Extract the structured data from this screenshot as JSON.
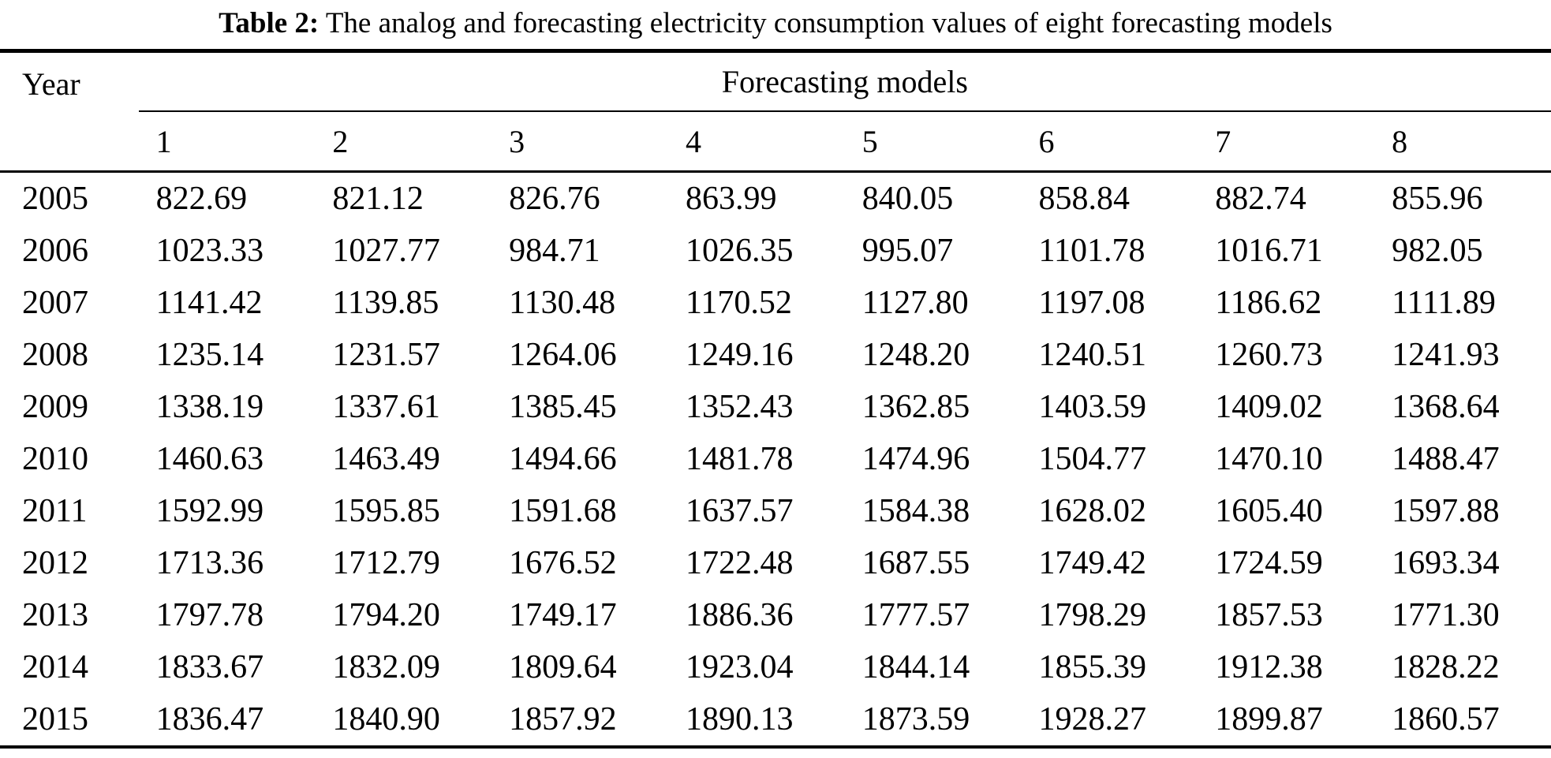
{
  "title": {
    "label": "Table 2:",
    "text": " The analog and forecasting electricity consumption values of eight forecasting models"
  },
  "table": {
    "year_header": "Year",
    "group_header": "Forecasting models",
    "model_headers": [
      "1",
      "2",
      "3",
      "4",
      "5",
      "6",
      "7",
      "8"
    ],
    "rows": [
      {
        "year": "2005",
        "values": [
          "822.69",
          "821.12",
          "826.76",
          "863.99",
          "840.05",
          "858.84",
          "882.74",
          "855.96"
        ]
      },
      {
        "year": "2006",
        "values": [
          "1023.33",
          "1027.77",
          "984.71",
          "1026.35",
          "995.07",
          "1101.78",
          "1016.71",
          "982.05"
        ]
      },
      {
        "year": "2007",
        "values": [
          "1141.42",
          "1139.85",
          "1130.48",
          "1170.52",
          "1127.80",
          "1197.08",
          "1186.62",
          "1111.89"
        ]
      },
      {
        "year": "2008",
        "values": [
          "1235.14",
          "1231.57",
          "1264.06",
          "1249.16",
          "1248.20",
          "1240.51",
          "1260.73",
          "1241.93"
        ]
      },
      {
        "year": "2009",
        "values": [
          "1338.19",
          "1337.61",
          "1385.45",
          "1352.43",
          "1362.85",
          "1403.59",
          "1409.02",
          "1368.64"
        ]
      },
      {
        "year": "2010",
        "values": [
          "1460.63",
          "1463.49",
          "1494.66",
          "1481.78",
          "1474.96",
          "1504.77",
          "1470.10",
          "1488.47"
        ]
      },
      {
        "year": "2011",
        "values": [
          "1592.99",
          "1595.85",
          "1591.68",
          "1637.57",
          "1584.38",
          "1628.02",
          "1605.40",
          "1597.88"
        ]
      },
      {
        "year": "2012",
        "values": [
          "1713.36",
          "1712.79",
          "1676.52",
          "1722.48",
          "1687.55",
          "1749.42",
          "1724.59",
          "1693.34"
        ]
      },
      {
        "year": "2013",
        "values": [
          "1797.78",
          "1794.20",
          "1749.17",
          "1886.36",
          "1777.57",
          "1798.29",
          "1857.53",
          "1771.30"
        ]
      },
      {
        "year": "2014",
        "values": [
          "1833.67",
          "1832.09",
          "1809.64",
          "1923.04",
          "1844.14",
          "1855.39",
          "1912.38",
          "1828.22"
        ]
      },
      {
        "year": "2015",
        "values": [
          "1836.47",
          "1840.90",
          "1857.92",
          "1890.13",
          "1873.59",
          "1928.27",
          "1899.87",
          "1860.57"
        ]
      }
    ]
  }
}
